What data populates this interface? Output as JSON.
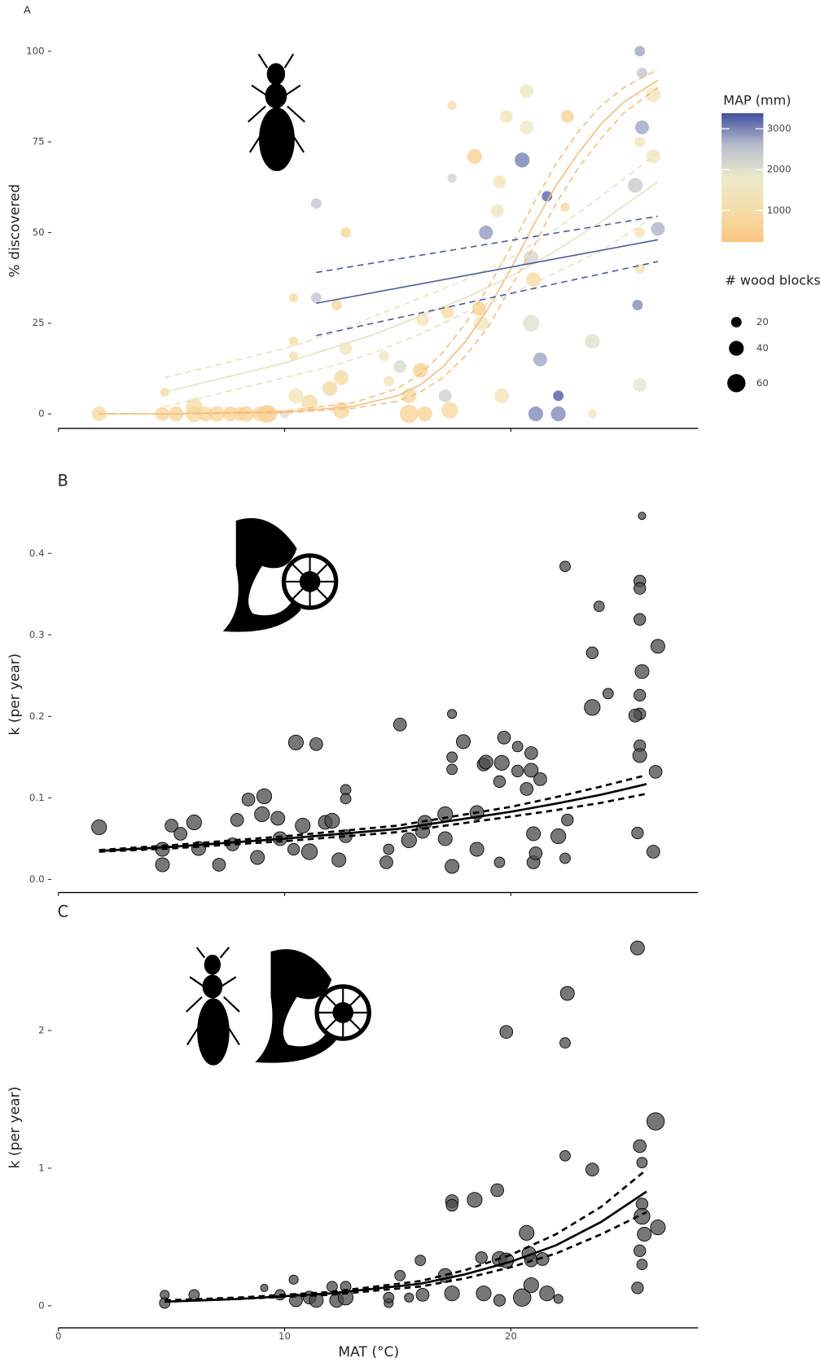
{
  "chart_data": [
    {
      "type": "scatter",
      "label": "A",
      "ylabel": "% discovered",
      "xlim": [
        0,
        28.2
      ],
      "ylim": [
        -4,
        105
      ],
      "yticks": [
        0,
        25,
        50,
        75,
        100
      ],
      "x": [
        1.8,
        4.6,
        5.2,
        6,
        6.5,
        7,
        7.6,
        8,
        8.3,
        8.9,
        9.3,
        4.7,
        6,
        9.2,
        10,
        10.4,
        10.4,
        10.4,
        10.5,
        11.1,
        11.4,
        11.4,
        12,
        12.3,
        12.7,
        12.7,
        12.5,
        12.5,
        14.4,
        14.6,
        15.1,
        15.5,
        15.5,
        16,
        16.2,
        16.1,
        17.1,
        17.4,
        17.4,
        17.2,
        17.3,
        18.4,
        18.6,
        18.7,
        18.9,
        19.4,
        19.5,
        19.8,
        19.6,
        20.5,
        20.7,
        20.7,
        20.9,
        20.9,
        21,
        21.3,
        21.1,
        21.6,
        22.1,
        22.1,
        22.5,
        22.4,
        23.6,
        23.6,
        25.7,
        25.8,
        25.8,
        25.5,
        25.7,
        25.7,
        25.6,
        25.7,
        26.3,
        26.3,
        26.5,
        25.7
      ],
      "y": [
        0,
        0,
        0,
        0,
        0,
        0,
        0,
        0,
        0,
        0,
        0,
        6,
        2,
        0,
        0,
        32,
        20,
        16,
        5,
        3,
        58,
        32,
        7,
        30,
        50,
        18,
        10,
        1,
        16,
        9,
        13,
        5,
        0,
        12,
        0,
        26,
        5,
        85,
        65,
        28,
        1,
        71,
        29,
        25,
        50,
        56,
        64,
        82,
        5,
        70,
        89,
        79,
        43,
        25,
        37,
        15,
        0,
        60,
        0,
        5,
        82,
        57,
        20,
        0,
        100,
        94,
        79,
        63,
        50,
        40,
        30,
        8,
        88,
        71,
        51,
        75
      ],
      "map": [
        900,
        700,
        650,
        800,
        750,
        700,
        650,
        800,
        700,
        750,
        650,
        800,
        900,
        700,
        2000,
        900,
        900,
        1100,
        1300,
        900,
        2500,
        2500,
        800,
        800,
        700,
        1300,
        900,
        700,
        1500,
        1300,
        2100,
        800,
        600,
        500,
        600,
        1400,
        2300,
        1000,
        2300,
        900,
        800,
        500,
        500,
        1400,
        2900,
        1400,
        1300,
        1200,
        1300,
        3100,
        1500,
        1600,
        2200,
        2000,
        900,
        2800,
        3000,
        3300,
        3000,
        3400,
        500,
        800,
        2000,
        1400,
        2800,
        2500,
        2800,
        2400,
        1200,
        1200,
        3000,
        1900,
        1300,
        1300,
        2700,
        1300
      ],
      "size": [
        40,
        35,
        40,
        50,
        40,
        45,
        40,
        35,
        45,
        40,
        50,
        15,
        50,
        60,
        15,
        15,
        15,
        15,
        40,
        50,
        20,
        20,
        40,
        20,
        20,
        30,
        40,
        50,
        20,
        20,
        30,
        40,
        60,
        40,
        40,
        30,
        30,
        15,
        15,
        30,
        50,
        40,
        35,
        40,
        35,
        30,
        30,
        30,
        40,
        40,
        35,
        35,
        40,
        50,
        40,
        35,
        40,
        20,
        40,
        20,
        30,
        15,
        40,
        15,
        20,
        20,
        35,
        40,
        20,
        20,
        20,
        35,
        40,
        35,
        35,
        20
      ],
      "opacity": 0.75,
      "colorbar": {
        "title": "MAP (mm)",
        "range": [
          230,
          3380
        ],
        "ticks": [
          1000,
          2000,
          3000
        ],
        "colors": [
          "#fcc57e",
          "#f4dda8",
          "#ebeaca",
          "#b8bccd",
          "#4150a0"
        ]
      },
      "size_legend": {
        "title": "# wood blocks",
        "values": [
          20,
          40,
          60
        ]
      },
      "fits": [
        {
          "color": "#f7bd7c",
          "width": 1.5,
          "x": [
            1.8,
            5,
            10,
            13,
            15,
            16,
            17,
            18,
            19,
            20,
            21,
            22,
            23,
            24,
            25,
            26.5
          ],
          "y": [
            0,
            0,
            0.5,
            2,
            5,
            8,
            13,
            20,
            29,
            40,
            52,
            63,
            72,
            80,
            86,
            92
          ],
          "lower": [
            0,
            0,
            0.3,
            1.5,
            3.5,
            6,
            10,
            16,
            24,
            35,
            46,
            58,
            68,
            76,
            83,
            90
          ],
          "upper": [
            0,
            0,
            0.8,
            3,
            7,
            11,
            17,
            25,
            35,
            46,
            58,
            69,
            78,
            85,
            90,
            95
          ]
        },
        {
          "color": "#e6e1bd",
          "width": 1.5,
          "x": [
            4.7,
            8,
            10,
            12,
            14,
            16,
            18,
            20,
            22,
            24,
            26.5
          ],
          "y": [
            6,
            11,
            14,
            18,
            22,
            27,
            32,
            38,
            45,
            53,
            64
          ],
          "lower": [
            2,
            7,
            10,
            13,
            17,
            22,
            28,
            33,
            39,
            45,
            55
          ],
          "upper": [
            10,
            15,
            18,
            22,
            27,
            32,
            37,
            43,
            51,
            60,
            72
          ]
        },
        {
          "color": "#4a5ba6",
          "width": 1.5,
          "x": [
            11.4,
            26.5
          ],
          "y": [
            30.5,
            48
          ],
          "lower": [
            21.6,
            42
          ],
          "upper": [
            39,
            54.5
          ]
        }
      ]
    },
    {
      "type": "scatter",
      "label": "B",
      "ylabel": "k (per year)",
      "xlim": [
        0,
        28.2
      ],
      "ylim": [
        -0.016,
        0.47
      ],
      "yticks": [
        {
          "value": 0,
          "label": "0.0"
        },
        {
          "value": 0.1,
          "label": "0.1"
        },
        {
          "value": 0.2,
          "label": "0.2"
        },
        {
          "value": 0.3,
          "label": "0.3"
        },
        {
          "value": 0.4,
          "label": "0.4"
        }
      ],
      "x": [
        1.8,
        4.6,
        4.6,
        5.0,
        5.4,
        6,
        6.2,
        7.1,
        7.7,
        7.9,
        8.4,
        9.1,
        9.0,
        8.8,
        9.7,
        9.8,
        10.5,
        10.4,
        10.8,
        11.1,
        11.4,
        11.8,
        12.1,
        12.4,
        12.7,
        12.7,
        12.7,
        14.6,
        14.5,
        15.1,
        15.5,
        16.1,
        16.2,
        17.4,
        17.4,
        17.4,
        17.1,
        17.1,
        17.4,
        17.9,
        18.5,
        18.5,
        18.8,
        18.9,
        19.5,
        19.5,
        19.7,
        19.6,
        20.3,
        20.3,
        20.7,
        20.9,
        20.9,
        21.0,
        21.0,
        21.1,
        21.3,
        22.1,
        22.4,
        22.5,
        22.4,
        23.6,
        23.6,
        23.9,
        24.3,
        25.8,
        25.7,
        25.7,
        25.7,
        25.8,
        25.7,
        25.7,
        25.5,
        25.7,
        25.7,
        25.6,
        26.5,
        26.4,
        26.3
      ],
      "y": [
        0.064,
        0.018,
        0.037,
        0.066,
        0.056,
        0.07,
        0.038,
        0.018,
        0.043,
        0.073,
        0.098,
        0.102,
        0.08,
        0.027,
        0.075,
        0.05,
        0.168,
        0.037,
        0.066,
        0.034,
        0.166,
        0.07,
        0.072,
        0.024,
        0.11,
        0.099,
        0.053,
        0.037,
        0.021,
        0.19,
        0.048,
        0.059,
        0.07,
        0.203,
        0.15,
        0.135,
        0.08,
        0.05,
        0.016,
        0.169,
        0.082,
        0.037,
        0.141,
        0.144,
        0.12,
        0.021,
        0.174,
        0.143,
        0.133,
        0.163,
        0.111,
        0.134,
        0.155,
        0.056,
        0.021,
        0.032,
        0.123,
        0.053,
        0.384,
        0.073,
        0.026,
        0.278,
        0.211,
        0.335,
        0.228,
        0.446,
        0.366,
        0.357,
        0.319,
        0.255,
        0.226,
        0.203,
        0.201,
        0.164,
        0.152,
        0.057,
        0.286,
        0.132,
        0.034
      ],
      "size": [
        40,
        35,
        35,
        30,
        30,
        40,
        35,
        30,
        30,
        30,
        30,
        40,
        40,
        35,
        35,
        35,
        40,
        25,
        40,
        45,
        30,
        35,
        40,
        35,
        20,
        20,
        30,
        20,
        30,
        30,
        40,
        35,
        35,
        15,
        20,
        20,
        40,
        35,
        35,
        35,
        35,
        35,
        30,
        35,
        25,
        20,
        30,
        40,
        25,
        20,
        30,
        35,
        30,
        35,
        30,
        30,
        30,
        40,
        20,
        25,
        20,
        25,
        45,
        20,
        20,
        10,
        25,
        25,
        25,
        35,
        25,
        25,
        30,
        25,
        35,
        25,
        35,
        30,
        30
      ],
      "color": "#4a4a4a",
      "opacity": 0.75,
      "fits": [
        {
          "color": "#000000",
          "width": 2.5,
          "x": [
            1.8,
            5,
            10,
            15,
            20,
            22,
            24,
            26
          ],
          "y": [
            0.035,
            0.04,
            0.05,
            0.062,
            0.083,
            0.093,
            0.104,
            0.117
          ],
          "lower": [
            0.034,
            0.038,
            0.047,
            0.058,
            0.077,
            0.085,
            0.094,
            0.105
          ],
          "upper": [
            0.036,
            0.042,
            0.053,
            0.066,
            0.089,
            0.101,
            0.114,
            0.128
          ]
        }
      ]
    },
    {
      "type": "scatter",
      "label": "C",
      "ylabel": "k (per year)",
      "xlabel": "MAT (°C)",
      "xlim": [
        0,
        28.2
      ],
      "ylim": [
        -0.16,
        2.75
      ],
      "xticks": [
        0,
        10,
        20
      ],
      "yticks": [
        0,
        1,
        2
      ],
      "x": [
        4.7,
        4.7,
        6,
        9.1,
        9.8,
        10.4,
        10.5,
        11.1,
        11.4,
        12.1,
        12.3,
        12.7,
        12.7,
        14.6,
        14.6,
        15.1,
        15.5,
        16,
        16.1,
        17.1,
        17.4,
        17.4,
        17.4,
        18.4,
        18.7,
        18.8,
        19.4,
        19.5,
        19.5,
        19.8,
        19.8,
        20.5,
        20.7,
        20.8,
        20.9,
        20.9,
        21.4,
        21.6,
        22.1,
        22.4,
        22.5,
        22.4,
        23.6,
        25.6,
        25.7,
        25.8,
        25.8,
        25.8,
        25.9,
        25.7,
        25.8,
        25.6,
        26.4,
        26.5
      ],
      "y": [
        0.08,
        0.02,
        0.08,
        0.13,
        0.08,
        0.19,
        0.04,
        0.06,
        0.04,
        0.14,
        0.04,
        0.14,
        0.06,
        0.02,
        0.06,
        0.22,
        0.06,
        0.33,
        0.08,
        0.22,
        0.09,
        0.76,
        0.73,
        0.77,
        0.35,
        0.09,
        0.84,
        0.34,
        0.04,
        1.99,
        0.33,
        0.06,
        0.53,
        0.38,
        0.33,
        0.15,
        0.34,
        0.09,
        0.05,
        1.09,
        2.27,
        1.91,
        0.99,
        2.6,
        1.16,
        1.04,
        0.74,
        0.65,
        0.52,
        0.4,
        0.3,
        0.13,
        1.34,
        0.57
      ],
      "size": [
        15,
        20,
        20,
        10,
        20,
        15,
        30,
        30,
        35,
        20,
        35,
        20,
        40,
        15,
        20,
        20,
        15,
        20,
        30,
        35,
        40,
        30,
        25,
        40,
        25,
        40,
        30,
        40,
        25,
        30,
        40,
        55,
        40,
        35,
        30,
        40,
        30,
        40,
        15,
        20,
        35,
        20,
        30,
        35,
        30,
        20,
        25,
        45,
        35,
        25,
        20,
        25,
        55,
        40
      ],
      "color": "#4a4a4a",
      "opacity": 0.75,
      "fits": [
        {
          "color": "#000000",
          "width": 2.5,
          "x": [
            4.7,
            8,
            12,
            16,
            18,
            20,
            22,
            24,
            26
          ],
          "y": [
            0.03,
            0.05,
            0.09,
            0.16,
            0.23,
            0.32,
            0.44,
            0.61,
            0.83
          ],
          "lower": [
            0.03,
            0.05,
            0.08,
            0.14,
            0.2,
            0.28,
            0.38,
            0.52,
            0.68
          ],
          "upper": [
            0.04,
            0.06,
            0.1,
            0.18,
            0.26,
            0.37,
            0.52,
            0.72,
            0.99
          ]
        }
      ]
    }
  ]
}
